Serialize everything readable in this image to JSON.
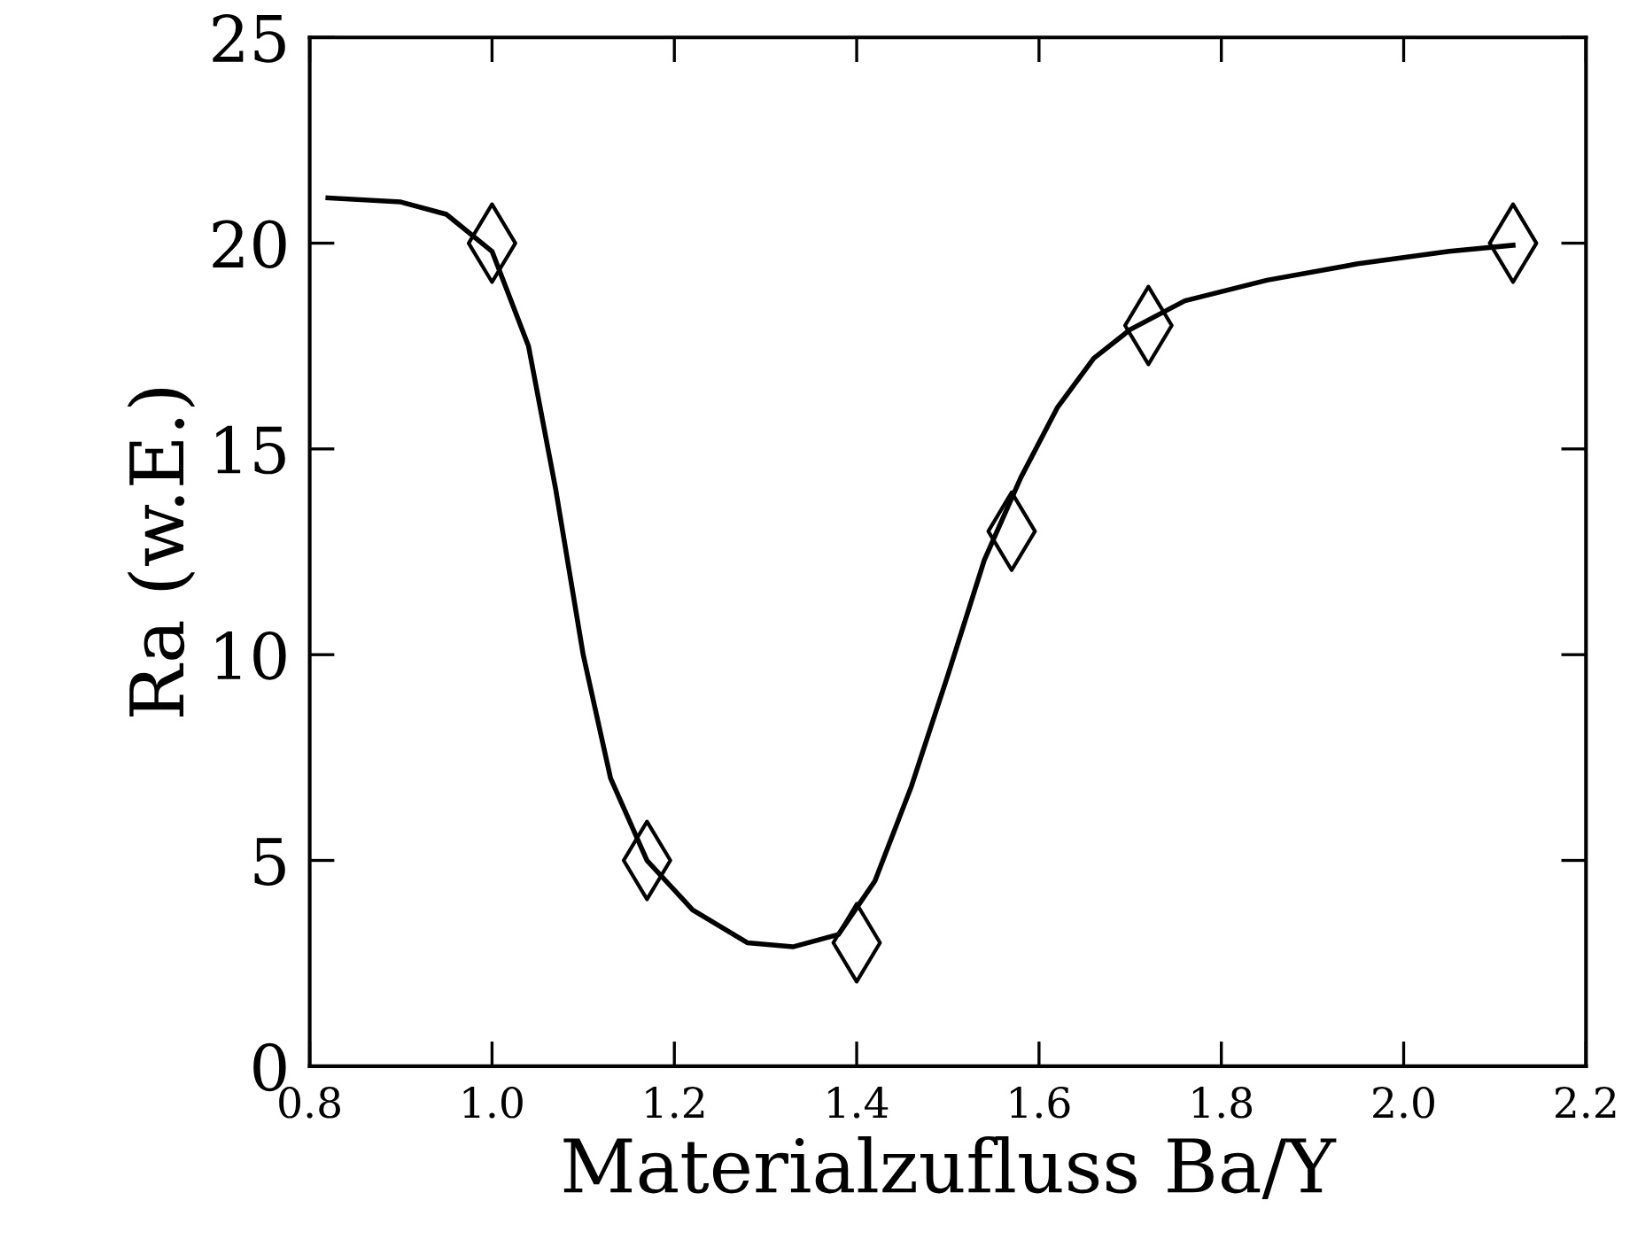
{
  "chart_data": {
    "type": "scatter",
    "xlabel": "Materialzufluss Ba/Y",
    "ylabel": "Ra (w.E.)",
    "marker": "diamond",
    "grid": false,
    "legend": false,
    "xlim": [
      0.8,
      2.2
    ],
    "ylim": [
      0,
      25
    ],
    "xticks": [
      {
        "value": 0.8,
        "label": "0.8"
      },
      {
        "value": 1.0,
        "label": "1.0"
      },
      {
        "value": 1.2,
        "label": "1.2"
      },
      {
        "value": 1.4,
        "label": "1.4"
      },
      {
        "value": 1.6,
        "label": "1.6"
      },
      {
        "value": 1.8,
        "label": "1.8"
      },
      {
        "value": 2.0,
        "label": "2.0"
      },
      {
        "value": 2.2,
        "label": "2.2"
      }
    ],
    "yticks": [
      0,
      5,
      10,
      15,
      20,
      25
    ],
    "series": [
      {
        "color": "#000000",
        "x": [
          1.0,
          1.17,
          1.4,
          1.57,
          1.72,
          2.12
        ],
        "values": [
          20,
          5,
          3,
          13,
          18,
          20
        ]
      },
      {
        "type": "line",
        "color": "#000000",
        "marker": "none",
        "line_style": "solid",
        "x": [
          0.82,
          0.9,
          0.95,
          1.0,
          1.04,
          1.07,
          1.1,
          1.13,
          1.17,
          1.22,
          1.28,
          1.33,
          1.38,
          1.42,
          1.46,
          1.5,
          1.54,
          1.58,
          1.62,
          1.66,
          1.7,
          1.76,
          1.85,
          1.95,
          2.05,
          2.12
        ],
        "values": [
          21.1,
          21.0,
          20.7,
          19.8,
          17.5,
          14,
          10,
          7,
          5,
          3.8,
          3.0,
          2.9,
          3.2,
          4.5,
          6.8,
          9.5,
          12.3,
          14.3,
          16,
          17.2,
          17.9,
          18.6,
          19.1,
          19.5,
          19.8,
          19.95
        ]
      }
    ]
  }
}
